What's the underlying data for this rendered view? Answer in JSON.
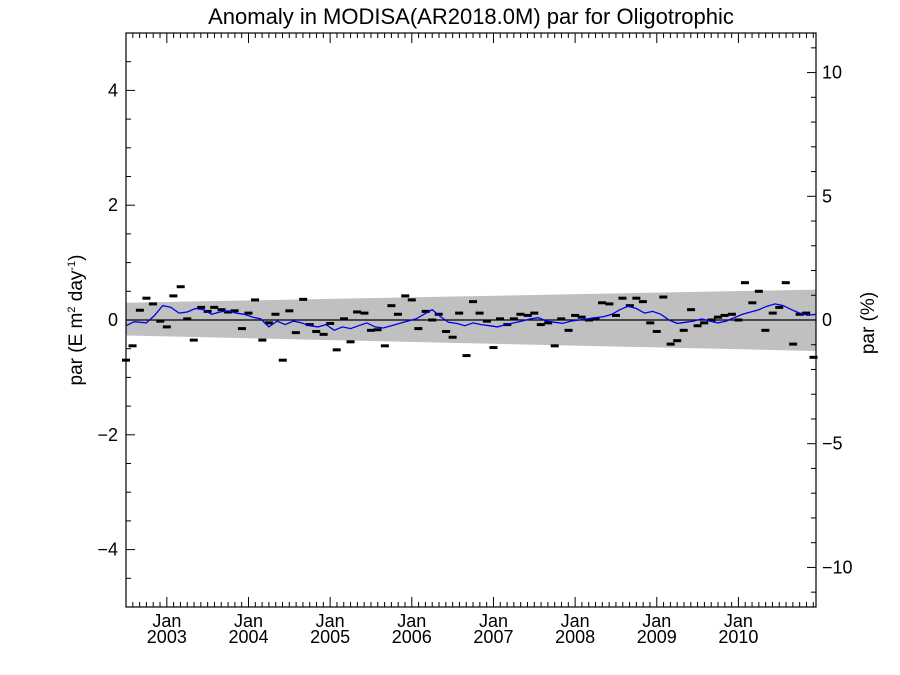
{
  "chart_data": {
    "type": "scatter",
    "title": "Anomaly in MODISA(AR2018.0M) par for Oligotrophic",
    "ylabel_left_main": "par (E m",
    "ylabel_left_sup1": "2",
    "ylabel_left_mid": " day",
    "ylabel_left_sup2": "-1",
    "ylabel_left_end": ")",
    "ylabel_right": "par (%)",
    "xlim": [
      2002.5,
      2010.95
    ],
    "ylim": [
      -5,
      5
    ],
    "ylim_right": [
      -11.6,
      11.6
    ],
    "yticks_left": [
      -4,
      -2,
      0,
      2,
      4
    ],
    "yticks_left_labels": [
      "−4",
      "−2",
      "0",
      "2",
      "4"
    ],
    "yticks_right": [
      -10,
      -5,
      0,
      5,
      10
    ],
    "yticks_right_labels": [
      "−10",
      "−5",
      "0",
      "5",
      "10"
    ],
    "xticks": [
      {
        "month": "Jan",
        "year": "2003",
        "x": 2003.0
      },
      {
        "month": "Jan",
        "year": "2004",
        "x": 2004.0
      },
      {
        "month": "Jan",
        "year": "2005",
        "x": 2005.0
      },
      {
        "month": "Jan",
        "year": "2006",
        "x": 2006.0
      },
      {
        "month": "Jan",
        "year": "2007",
        "x": 2007.0
      },
      {
        "month": "Jan",
        "year": "2008",
        "x": 2008.0
      },
      {
        "month": "Jan",
        "year": "2009",
        "x": 2009.0
      },
      {
        "month": "Jan",
        "year": "2010",
        "x": 2010.0
      }
    ],
    "confidence_band": {
      "x": [
        2002.5,
        2010.95
      ],
      "upper": [
        0.3,
        0.53
      ],
      "lower": [
        -0.27,
        -0.54
      ],
      "color": "#c0c0c0"
    },
    "zero_line": 0,
    "series": [
      {
        "kind": "points",
        "color": "#000000",
        "x": [
          2002.5,
          2002.58,
          2002.67,
          2002.75,
          2002.83,
          2002.92,
          2003.0,
          2003.08,
          2003.17,
          2003.25,
          2003.33,
          2003.42,
          2003.5,
          2003.58,
          2003.67,
          2003.75,
          2003.83,
          2003.92,
          2004.0,
          2004.08,
          2004.17,
          2004.25,
          2004.33,
          2004.42,
          2004.5,
          2004.58,
          2004.67,
          2004.75,
          2004.83,
          2004.92,
          2005.0,
          2005.08,
          2005.17,
          2005.25,
          2005.33,
          2005.42,
          2005.5,
          2005.58,
          2005.67,
          2005.75,
          2005.83,
          2005.92,
          2006.0,
          2006.08,
          2006.17,
          2006.25,
          2006.33,
          2006.42,
          2006.5,
          2006.58,
          2006.67,
          2006.75,
          2006.83,
          2006.92,
          2007.0,
          2007.08,
          2007.17,
          2007.25,
          2007.33,
          2007.42,
          2007.5,
          2007.58,
          2007.67,
          2007.75,
          2007.83,
          2007.92,
          2008.0,
          2008.08,
          2008.17,
          2008.25,
          2008.33,
          2008.42,
          2008.5,
          2008.58,
          2008.67,
          2008.75,
          2008.83,
          2008.92,
          2009.0,
          2009.08,
          2009.17,
          2009.25,
          2009.33,
          2009.42,
          2009.5,
          2009.58,
          2009.67,
          2009.75,
          2009.83,
          2009.92,
          2010.0,
          2010.08,
          2010.17,
          2010.25,
          2010.33,
          2010.42,
          2010.5,
          2010.58,
          2010.67,
          2010.75,
          2010.83,
          2010.92
        ],
        "y": [
          -0.7,
          -0.45,
          0.17,
          0.38,
          0.28,
          -0.02,
          -0.12,
          0.42,
          0.58,
          0.02,
          -0.35,
          0.22,
          0.15,
          0.22,
          0.18,
          0.14,
          0.16,
          -0.15,
          0.12,
          0.35,
          -0.35,
          -0.05,
          0.1,
          -0.7,
          0.16,
          -0.22,
          0.36,
          -0.08,
          -0.2,
          -0.25,
          -0.06,
          -0.52,
          0.02,
          -0.38,
          0.14,
          0.12,
          -0.18,
          -0.17,
          -0.45,
          0.25,
          0.1,
          0.42,
          0.35,
          -0.15,
          0.15,
          0.0,
          0.1,
          -0.2,
          -0.3,
          0.12,
          -0.62,
          0.32,
          0.12,
          -0.02,
          -0.48,
          0.02,
          -0.08,
          0.02,
          0.1,
          0.08,
          0.12,
          -0.08,
          -0.05,
          -0.45,
          0.02,
          -0.18,
          0.08,
          0.05,
          0.0,
          0.02,
          0.3,
          0.28,
          0.08,
          0.38,
          0.25,
          0.38,
          0.32,
          -0.05,
          -0.2,
          0.4,
          -0.42,
          -0.36,
          -0.18,
          0.18,
          -0.1,
          -0.05,
          0.0,
          0.05,
          0.08,
          0.1,
          0.0,
          0.65,
          0.3,
          0.5,
          -0.18,
          0.12,
          0.22,
          0.65,
          -0.42,
          0.1,
          0.12,
          -0.65
        ]
      },
      {
        "kind": "line",
        "color": "#0000ee",
        "x": [
          2002.5,
          2002.6,
          2002.75,
          2002.85,
          2002.95,
          2003.05,
          2003.15,
          2003.25,
          2003.35,
          2003.45,
          2003.55,
          2003.65,
          2003.75,
          2003.85,
          2003.95,
          2004.05,
          2004.15,
          2004.25,
          2004.35,
          2004.45,
          2004.55,
          2004.65,
          2004.75,
          2004.85,
          2004.95,
          2005.05,
          2005.15,
          2005.25,
          2005.35,
          2005.45,
          2005.55,
          2005.65,
          2005.75,
          2005.85,
          2005.95,
          2006.05,
          2006.15,
          2006.25,
          2006.35,
          2006.45,
          2006.55,
          2006.65,
          2006.75,
          2006.85,
          2006.95,
          2007.05,
          2007.15,
          2007.25,
          2007.35,
          2007.45,
          2007.55,
          2007.65,
          2007.75,
          2007.85,
          2007.95,
          2008.05,
          2008.15,
          2008.25,
          2008.35,
          2008.45,
          2008.55,
          2008.65,
          2008.75,
          2008.85,
          2008.95,
          2009.05,
          2009.15,
          2009.25,
          2009.35,
          2009.45,
          2009.55,
          2009.65,
          2009.75,
          2009.85,
          2009.95,
          2010.05,
          2010.15,
          2010.25,
          2010.35,
          2010.45,
          2010.55,
          2010.65,
          2010.75,
          2010.85,
          2010.95
        ],
        "y": [
          -0.1,
          -0.03,
          -0.05,
          0.08,
          0.25,
          0.22,
          0.12,
          0.14,
          0.2,
          0.18,
          0.1,
          0.14,
          0.16,
          0.12,
          0.1,
          0.05,
          0.02,
          -0.12,
          -0.02,
          -0.08,
          -0.02,
          -0.05,
          -0.1,
          -0.12,
          -0.08,
          -0.18,
          -0.12,
          -0.15,
          -0.1,
          -0.05,
          -0.12,
          -0.14,
          -0.1,
          -0.06,
          -0.02,
          0.02,
          0.1,
          0.18,
          0.06,
          -0.04,
          -0.06,
          -0.1,
          -0.05,
          -0.08,
          -0.1,
          -0.12,
          -0.08,
          -0.05,
          -0.02,
          0.02,
          0.04,
          -0.02,
          -0.04,
          -0.06,
          -0.02,
          0.0,
          0.02,
          0.04,
          0.06,
          0.1,
          0.18,
          0.24,
          0.2,
          0.12,
          0.15,
          0.1,
          0.0,
          -0.06,
          -0.04,
          -0.02,
          0.02,
          -0.02,
          -0.05,
          -0.02,
          0.04,
          0.1,
          0.14,
          0.18,
          0.24,
          0.28,
          0.25,
          0.18,
          0.12,
          0.08,
          0.1
        ]
      }
    ],
    "grid": false,
    "legend": "none"
  }
}
